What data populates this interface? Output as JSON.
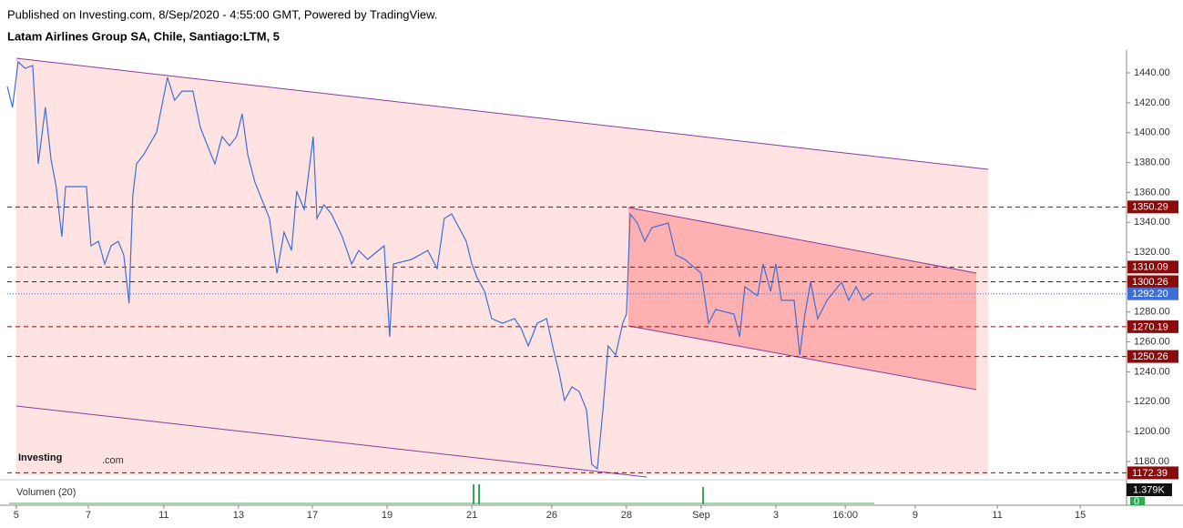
{
  "header": {
    "published": "Published on Investing.com, 8/Sep/2020 - 4:55:00 GMT, Powered by TradingView.",
    "symbol": "Latam Airlines Group SA, Chile, Santiago:LTM, 5"
  },
  "logo": {
    "brand": "Investing",
    "suffix": ".com"
  },
  "chart_data": {
    "type": "line",
    "color": "#3f6fd6",
    "x": [
      -0.24,
      -0.1,
      0.05,
      0.24,
      0.44,
      0.59,
      0.78,
      0.93,
      1.07,
      1.22,
      1.32,
      1.88,
      2.0,
      2.2,
      2.37,
      2.54,
      2.73,
      2.88,
      3.02,
      3.12,
      3.22,
      3.41,
      3.76,
      4.05,
      4.24,
      4.44,
      4.73,
      4.93,
      5.12,
      5.32,
      5.51,
      5.71,
      5.9,
      6.05,
      6.2,
      6.39,
      6.78,
      6.98,
      7.17,
      7.37,
      7.51,
      7.71,
      7.95,
      8.05,
      8.24,
      8.44,
      8.73,
      8.98,
      9.17,
      9.41,
      9.85,
      10.0,
      10.1,
      10.59,
      11.02,
      11.27,
      11.46,
      11.66,
      12.05,
      12.2,
      12.34,
      12.54,
      12.73,
      13.02,
      13.34,
      13.51,
      13.71,
      13.95,
      14.2,
      14.39,
      14.54,
      14.68,
      14.88,
      15.07,
      15.27,
      15.41,
      15.56,
      15.71,
      15.85,
      16.05,
      16.24,
      16.34,
      16.44,
      16.63,
      16.83,
      17.02,
      17.46,
      17.66,
      17.9,
      18.34,
      18.54,
      18.73,
      19.22,
      19.37,
      19.51,
      19.85,
      20.0,
      20.2,
      20.34,
      20.49,
      20.83,
      20.98,
      21.12,
      21.27,
      21.46,
      21.71,
      22.1,
      22.29,
      22.49,
      22.68,
      22.93
    ],
    "values": [
      1430.9,
      1416.9,
      1447.3,
      1443.0,
      1444.9,
      1379.1,
      1416.9,
      1382.1,
      1363.9,
      1330.4,
      1363.9,
      1363.9,
      1324.3,
      1327.3,
      1312.1,
      1324.3,
      1327.3,
      1318.2,
      1285.9,
      1357.8,
      1379.1,
      1385.2,
      1400.4,
      1437.0,
      1421.7,
      1427.8,
      1427.8,
      1403.5,
      1391.3,
      1379.1,
      1397.4,
      1391.3,
      1397.4,
      1412.6,
      1385.2,
      1366.9,
      1342.6,
      1306.0,
      1333.4,
      1321.2,
      1360.8,
      1348.7,
      1397.4,
      1342.6,
      1351.7,
      1345.6,
      1330.4,
      1312.1,
      1321.2,
      1315.2,
      1324.3,
      1263.4,
      1312.1,
      1315.2,
      1321.2,
      1309.1,
      1342.6,
      1345.6,
      1327.3,
      1312.1,
      1302.9,
      1293.8,
      1275.6,
      1272.5,
      1275.6,
      1269.5,
      1257.3,
      1272.5,
      1275.6,
      1254.3,
      1239.0,
      1220.8,
      1229.9,
      1226.9,
      1214.7,
      1178.1,
      1175.1,
      1214.7,
      1257.3,
      1251.2,
      1272.5,
      1278.6,
      1345.6,
      1339.5,
      1327.3,
      1336.5,
      1339.5,
      1318.2,
      1315.2,
      1306.0,
      1272.5,
      1281.7,
      1278.6,
      1263.4,
      1296.9,
      1290.8,
      1312.1,
      1293.8,
      1312.1,
      1287.8,
      1287.8,
      1251.2,
      1278.6,
      1300.0,
      1275.6,
      1287.8,
      1300.0,
      1287.8,
      1296.9,
      1287.8,
      1292.7
    ],
    "xlim": [
      -0.24,
      29.73
    ],
    "xticks": [
      {
        "value": 0,
        "label": "5"
      },
      {
        "value": 1.93,
        "label": "7"
      },
      {
        "value": 3.95,
        "label": "11"
      },
      {
        "value": 5.95,
        "label": "13"
      },
      {
        "value": 7.93,
        "label": "17"
      },
      {
        "value": 9.93,
        "label": "19"
      },
      {
        "value": 12.2,
        "label": "21"
      },
      {
        "value": 14.34,
        "label": "26"
      },
      {
        "value": 16.34,
        "label": "28"
      },
      {
        "value": 18.34,
        "label": "Sep"
      },
      {
        "value": 20.34,
        "label": "3"
      },
      {
        "value": 22.2,
        "label": "16:00"
      },
      {
        "value": 24.07,
        "label": "9"
      },
      {
        "value": 26.27,
        "label": "11"
      },
      {
        "value": 28.49,
        "label": "15"
      }
    ],
    "ylim": [
      1169,
      1452.2
    ],
    "yticks": [
      {
        "value": 1180,
        "label": "1180.00"
      },
      {
        "value": 1200,
        "label": "1200.00"
      },
      {
        "value": 1220,
        "label": "1220.00"
      },
      {
        "value": 1240,
        "label": "1240.00"
      },
      {
        "value": 1260,
        "label": "1260.00"
      },
      {
        "value": 1280,
        "label": "1280.00"
      },
      {
        "value": 1300,
        "label": "1300.00"
      },
      {
        "value": 1320,
        "label": "1320.00"
      },
      {
        "value": 1340,
        "label": "1340.00"
      },
      {
        "value": 1360,
        "label": "1360.00"
      },
      {
        "value": 1380,
        "label": "1380.00"
      },
      {
        "value": 1400,
        "label": "1400.00"
      },
      {
        "value": 1420,
        "label": "1420.00"
      },
      {
        "value": 1440,
        "label": "1440.00"
      }
    ],
    "levels": [
      1350.29,
      1310.09,
      1300.26,
      1270.19,
      1250.26,
      1172.39
    ],
    "level_color": "#8b0a0a",
    "last_price": {
      "value": 1292.2,
      "label": "1292.20"
    },
    "last_price_color": "#3f6fd6",
    "volume_label": "Volumen (20)",
    "volume_last_label": "1.379K",
    "volume_zero": 0
  }
}
